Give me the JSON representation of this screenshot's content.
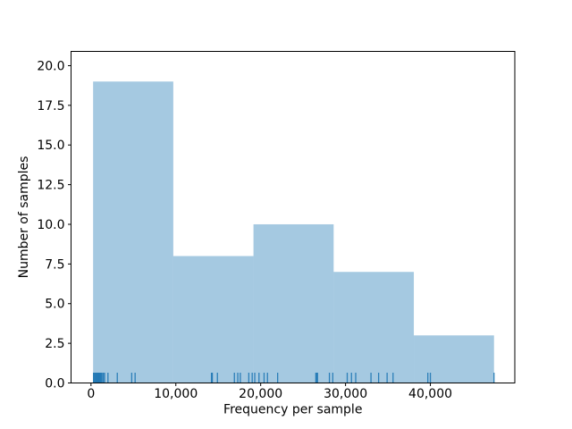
{
  "figure": {
    "background": "#ffffff"
  },
  "chart_data": {
    "type": "bar",
    "subtype": "histogram_with_rug",
    "title": "",
    "xlabel": "Frequency per sample",
    "ylabel": "Number of samples",
    "bins": {
      "edges": [
        250,
        9700,
        19150,
        28600,
        38050,
        47500
      ],
      "counts": [
        19,
        8,
        10,
        7,
        3
      ]
    },
    "rug_x": [
      300,
      400,
      500,
      600,
      650,
      750,
      800,
      900,
      950,
      1050,
      1100,
      1200,
      1300,
      1450,
      1600,
      2000,
      3100,
      4800,
      5200,
      14200,
      14300,
      14900,
      16900,
      17300,
      17600,
      18600,
      19000,
      19300,
      19800,
      20400,
      20800,
      22000,
      26500,
      26600,
      26700,
      28100,
      28500,
      30200,
      30700,
      31200,
      33000,
      33900,
      34900,
      35600,
      39700,
      40000,
      47500
    ],
    "x_ticks": {
      "values": [
        0,
        10000,
        20000,
        30000,
        40000
      ],
      "labels": [
        "0",
        "10,000",
        "20,000",
        "30,000",
        "40,000"
      ]
    },
    "y_ticks": {
      "values": [
        0,
        2.5,
        5,
        7.5,
        10,
        12.5,
        15,
        17.5,
        20
      ],
      "labels": [
        "0.0",
        "2.5",
        "5.0",
        "7.5",
        "10.0",
        "12.5",
        "15.0",
        "17.5",
        "20.0"
      ]
    },
    "xlim": [
      -2350,
      49950
    ],
    "ylim": [
      0,
      20.9
    ],
    "grid": false,
    "legend": "none",
    "colors": {
      "hist_fill": "#1f77b4",
      "hist_fill_opacity": 0.4,
      "hist_fill_effective": "#a6c9e2",
      "rug": "#1f77b4",
      "spine": "#000000",
      "text": "#000000",
      "background": "#ffffff"
    }
  }
}
